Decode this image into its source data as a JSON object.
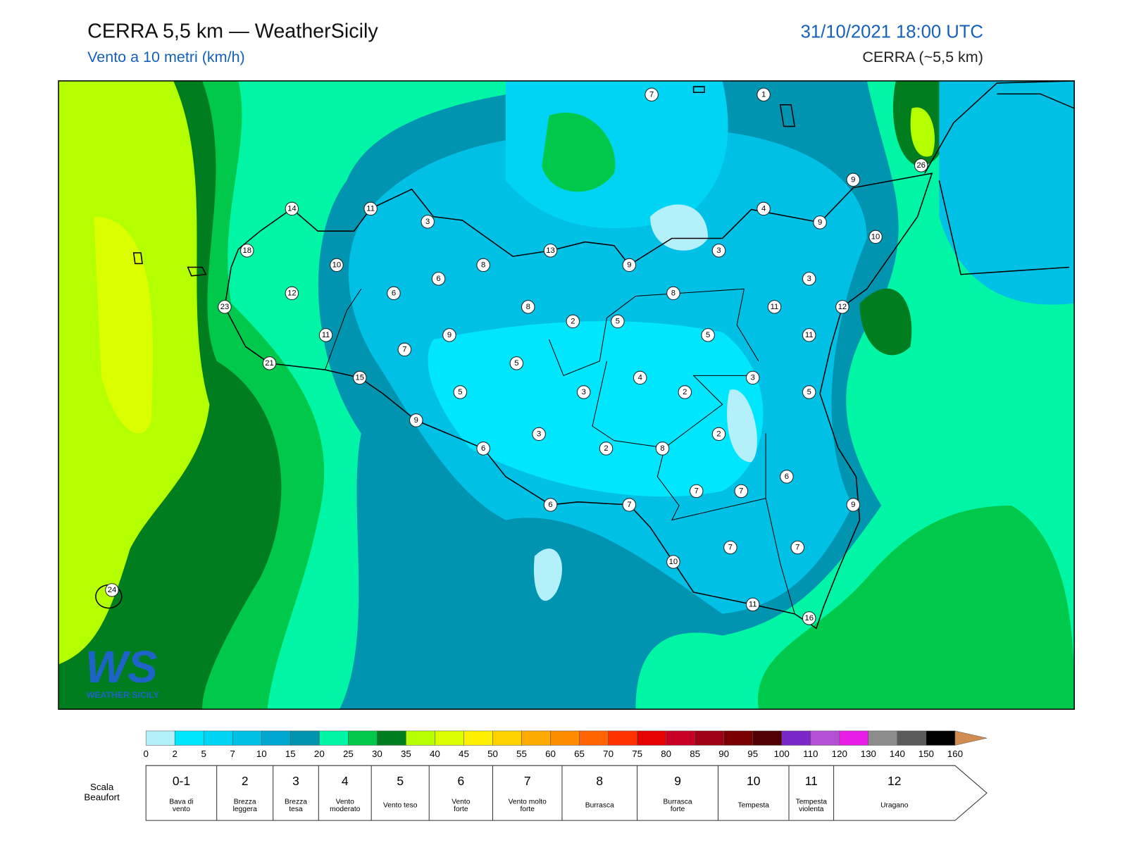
{
  "header": {
    "title": "CERRA 5,5 km — WeatherSicily",
    "subtitle": "Vento a 10 metri (km/h)",
    "datetime": "31/10/2021 18:00 UTC",
    "model": "CERRA (~5,5 km)"
  },
  "map": {
    "station_values": [
      7,
      1,
      26,
      9,
      14,
      11,
      3,
      4,
      9,
      10,
      18,
      10,
      13,
      8,
      9,
      3,
      3,
      6,
      12,
      6,
      8,
      23,
      8,
      2,
      5,
      11,
      12,
      11,
      9,
      5,
      11,
      7,
      21,
      5,
      15,
      4,
      3,
      5,
      3,
      2,
      5,
      9,
      3,
      2,
      6,
      2,
      8,
      6,
      7,
      7,
      6,
      7,
      9,
      10,
      7,
      7,
      24,
      11,
      16
    ],
    "logo": {
      "mark": "WS",
      "name": "WEATHER SICILY"
    }
  },
  "colorbar": {
    "ticks": [
      0,
      2,
      5,
      7,
      10,
      15,
      20,
      25,
      30,
      35,
      40,
      45,
      50,
      55,
      60,
      65,
      70,
      75,
      80,
      85,
      90,
      95,
      100,
      110,
      120,
      130,
      140,
      150,
      160
    ],
    "colors": [
      "#b4f0fa",
      "#00e6ff",
      "#00d4f5",
      "#00c0e6",
      "#00a8d0",
      "#0094b0",
      "#00f5a5",
      "#00c84b",
      "#007d1e",
      "#b4ff00",
      "#dcff00",
      "#fff000",
      "#ffd200",
      "#ffaa00",
      "#ff8c00",
      "#ff6400",
      "#ff3200",
      "#e60000",
      "#c80028",
      "#a00014",
      "#780000",
      "#500000",
      "#7828c8",
      "#b450d2",
      "#e61ee6",
      "#8c8c8c",
      "#5a5a5a",
      "#000000",
      "#8c4b28",
      "#d28c50"
    ]
  },
  "beaufort": {
    "label": [
      "Scala",
      "Beaufort"
    ],
    "levels": [
      {
        "force": "0-1",
        "desc": [
          "Bava di",
          "vento"
        ]
      },
      {
        "force": "2",
        "desc": [
          "Brezza",
          "leggera"
        ]
      },
      {
        "force": "3",
        "desc": [
          "Brezza",
          "tesa"
        ]
      },
      {
        "force": "4",
        "desc": [
          "Vento",
          "moderato"
        ]
      },
      {
        "force": "5",
        "desc": [
          "Vento teso"
        ]
      },
      {
        "force": "6",
        "desc": [
          "Vento",
          "forte"
        ]
      },
      {
        "force": "7",
        "desc": [
          "Vento molto",
          "forte"
        ]
      },
      {
        "force": "8",
        "desc": [
          "Burrasca"
        ]
      },
      {
        "force": "9",
        "desc": [
          "Burrasca",
          "forte"
        ]
      },
      {
        "force": "10",
        "desc": [
          "Tempesta"
        ]
      },
      {
        "force": "11",
        "desc": [
          "Tempesta",
          "violenta"
        ]
      },
      {
        "force": "12",
        "desc": [
          "Uragano"
        ]
      }
    ]
  }
}
